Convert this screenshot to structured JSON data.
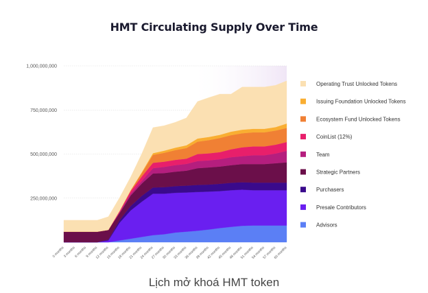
{
  "chart_data": {
    "type": "area",
    "stacked": true,
    "title": "HMT Circulating Supply Over Time",
    "x": [
      "0 months",
      "3 months",
      "6 months",
      "9 months",
      "12 months",
      "15 months",
      "18 months",
      "21 months",
      "24 months",
      "27 months",
      "30 months",
      "33 months",
      "36 months",
      "39 months",
      "42 months",
      "45 months",
      "48 months",
      "51 months",
      "54 months",
      "57 months",
      "60 months"
    ],
    "ylim": [
      0,
      1000000000
    ],
    "yticks": [
      250000000,
      500000000,
      750000000,
      1000000000
    ],
    "ytick_labels": [
      "250,000,000",
      "500,000,000",
      "750,000,000",
      "1,000,000,000"
    ],
    "grid": true,
    "legend_position": "right",
    "series": [
      {
        "name": "Advisors",
        "color": "#5b7ff5",
        "values": [
          0,
          0,
          0,
          0,
          0,
          10000000,
          20000000,
          30000000,
          40000000,
          45000000,
          55000000,
          60000000,
          65000000,
          72000000,
          80000000,
          87000000,
          93000000,
          95000000,
          95000000,
          95000000,
          95000000
        ]
      },
      {
        "name": "Presale Contributors",
        "color": "#6a1ff0",
        "values": [
          0,
          0,
          0,
          0,
          10000000,
          100000000,
          160000000,
          200000000,
          235000000,
          230000000,
          225000000,
          222000000,
          220000000,
          215000000,
          210000000,
          208000000,
          205000000,
          200000000,
          200000000,
          200000000,
          200000000
        ]
      },
      {
        "name": "Purchasers",
        "color": "#3a0a8c",
        "values": [
          0,
          0,
          0,
          0,
          5000000,
          15000000,
          25000000,
          33000000,
          35000000,
          37000000,
          38000000,
          39000000,
          40000000,
          40000000,
          41000000,
          42000000,
          42000000,
          43000000,
          43000000,
          43000000,
          43000000
        ]
      },
      {
        "name": "Strategic Partners",
        "color": "#6b0f4a",
        "values": [
          60000000,
          60000000,
          60000000,
          60000000,
          55000000,
          40000000,
          60000000,
          70000000,
          80000000,
          80000000,
          82000000,
          85000000,
          95000000,
          97000000,
          98000000,
          100000000,
          103000000,
          105000000,
          105000000,
          110000000,
          115000000
        ]
      },
      {
        "name": "Team",
        "color": "#b51e7e",
        "values": [
          0,
          0,
          0,
          0,
          0,
          5000000,
          10000000,
          15000000,
          30000000,
          35000000,
          37000000,
          38000000,
          40000000,
          40000000,
          42000000,
          45000000,
          45000000,
          50000000,
          50000000,
          55000000,
          65000000
        ]
      },
      {
        "name": "CoinList (12%)",
        "color": "#e81f6b",
        "values": [
          0,
          0,
          0,
          0,
          0,
          5000000,
          15000000,
          25000000,
          30000000,
          30000000,
          30000000,
          30000000,
          40000000,
          40000000,
          40000000,
          45000000,
          50000000,
          50000000,
          50000000,
          50000000,
          50000000
        ]
      },
      {
        "name": "Ecosystem Fund Unlocked Tokens",
        "color": "#f08034",
        "values": [
          0,
          0,
          0,
          0,
          0,
          3000000,
          5000000,
          20000000,
          45000000,
          50000000,
          55000000,
          60000000,
          70000000,
          75000000,
          80000000,
          80000000,
          80000000,
          80000000,
          80000000,
          80000000,
          80000000
        ]
      },
      {
        "name": "Issuing Foundation Unlocked Tokens",
        "color": "#f9ae32",
        "values": [
          0,
          0,
          0,
          0,
          0,
          0,
          0,
          5000000,
          10000000,
          12000000,
          14000000,
          16000000,
          18000000,
          18000000,
          18000000,
          20000000,
          20000000,
          20000000,
          20000000,
          20000000,
          25000000
        ]
      },
      {
        "name": "Operating Trust Unlocked Tokens",
        "color": "#fbe0b2",
        "values": [
          65000000,
          65000000,
          65000000,
          65000000,
          75000000,
          75000000,
          75000000,
          105000000,
          145000000,
          142000000,
          144000000,
          155000000,
          210000000,
          223000000,
          231000000,
          213000000,
          242000000,
          237000000,
          237000000,
          237000000,
          242000000
        ]
      }
    ]
  },
  "caption": "Lịch mở khoá HMT token",
  "colors": {
    "grid": "#d9d9d9",
    "fade_background": "#f0e6f6"
  }
}
